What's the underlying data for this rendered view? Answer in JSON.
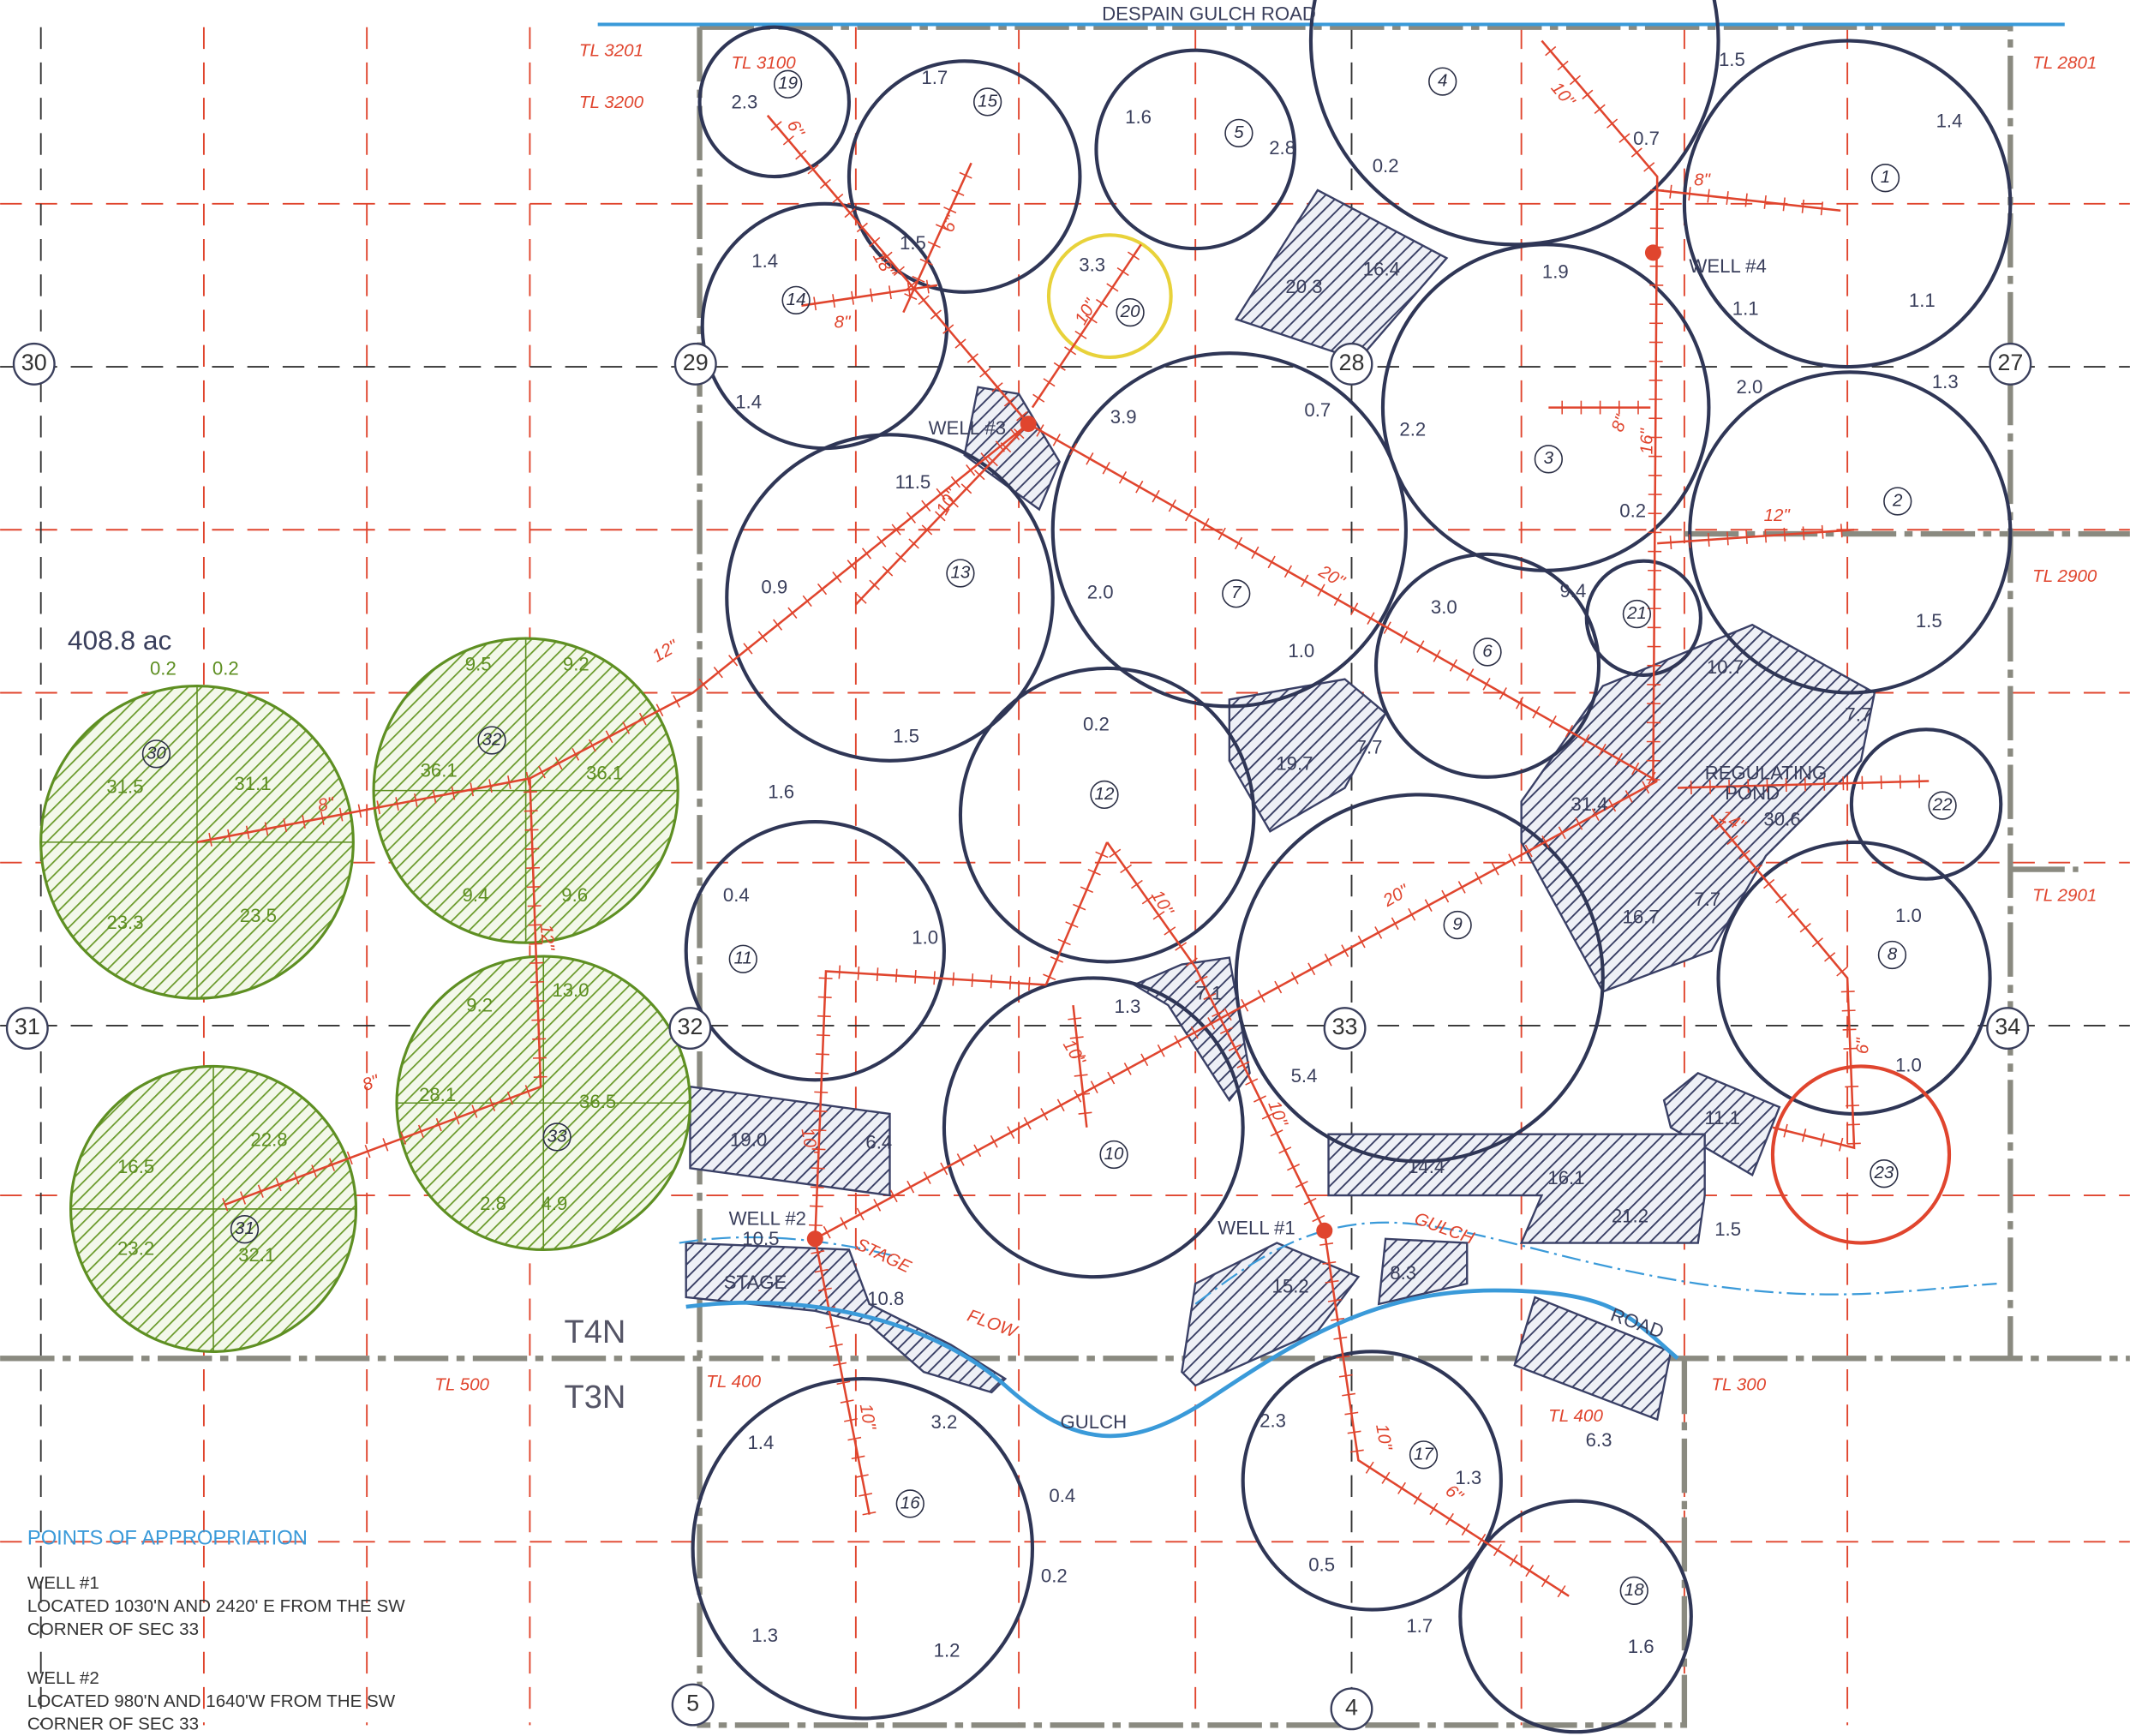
{
  "road": "DESPAIN GULCH ROAD",
  "total_area": "408.8 ac",
  "sections": [
    "30",
    "29",
    "28",
    "27",
    "31",
    "32",
    "33",
    "34",
    "5",
    "4"
  ],
  "townships": [
    "T4N",
    "T3N"
  ],
  "tax_lots": [
    "TL 3201",
    "TL 3100",
    "TL 3200",
    "TL 2801",
    "TL 2900",
    "TL 2901",
    "TL 500",
    "TL 400",
    "TL 400",
    "TL 300"
  ],
  "pivots": [
    "1",
    "2",
    "3",
    "4",
    "5",
    "6",
    "7",
    "8",
    "9",
    "10",
    "11",
    "12",
    "13",
    "14",
    "15",
    "16",
    "17",
    "18",
    "19",
    "20",
    "21",
    "22",
    "23",
    "30",
    "31",
    "32",
    "33"
  ],
  "acreages": [
    "1.4",
    "1.1",
    "1.1",
    "1.3",
    "2.0",
    "1.5",
    "1.5",
    "0.7",
    "0.2",
    "2.8",
    "1.6",
    "1.7",
    "2.3",
    "1.5",
    "1.4",
    "1.4",
    "3.3",
    "1.9",
    "16.4",
    "20.3",
    "0.7",
    "3.9",
    "2.2",
    "0.2",
    "9.4",
    "11.5",
    "0.9",
    "2.0",
    "1.0",
    "3.0",
    "10.7",
    "7.7",
    "0.2",
    "1.5",
    "1.6",
    "19.7",
    "7.7",
    "31.4",
    "30.6",
    "16.7",
    "7.7",
    "1.0",
    "1.0",
    "0.4",
    "1.0",
    "1.3",
    "7.1",
    "5.4",
    "19.0",
    "6.4",
    "11.1",
    "14.4",
    "16.1",
    "21.2",
    "1.5",
    "10.5",
    "10.8",
    "15.2",
    "8.3",
    "1.4",
    "3.2",
    "0.4",
    "0.2",
    "1.3",
    "1.2",
    "2.3",
    "1.3",
    "6.3",
    "0.5",
    "1.7",
    "1.6"
  ],
  "green_acreages": [
    "0.2",
    "0.2",
    "31.5",
    "31.1",
    "23.3",
    "23.5",
    "9.5",
    "9.2",
    "36.1",
    "36.1",
    "9.4",
    "9.6",
    "9.2",
    "13.0",
    "28.1",
    "36.5",
    "2.8",
    "4.9",
    "16.5",
    "22.8",
    "23.2",
    "32.1"
  ],
  "wells": [
    "WELL #1",
    "WELL #2",
    "WELL #3",
    "WELL #4"
  ],
  "pipe_sizes": [
    "10\"",
    "8\"",
    "16\"",
    "8\"",
    "12\"",
    "20\"",
    "6\"",
    "18\"",
    "8\"",
    "6\"",
    "10\"",
    "10\"",
    "12\"",
    "8\"",
    "12\"",
    "8\"",
    "10\"",
    "10\"",
    "20\"",
    "10\"",
    "10\"",
    "14\"",
    "6\"",
    "10\"",
    "10\"",
    "6\""
  ],
  "features": [
    "REGULATING",
    "POND",
    "STAGE",
    "STAGE",
    "FLOW",
    "GULCH",
    "ROAD",
    "GULCH"
  ],
  "legend": {
    "title": "POINTS OF APPROPRIATION",
    "items": [
      {
        "name": "WELL #1",
        "lines": [
          "LOCATED 1030'N AND 2420' E FROM THE SW",
          "CORNER OF SEC 33"
        ]
      },
      {
        "name": "WELL #2",
        "lines": [
          "LOCATED 980'N AND 1640'W FROM THE SW",
          "CORNER OF SEC 33"
        ]
      }
    ]
  }
}
